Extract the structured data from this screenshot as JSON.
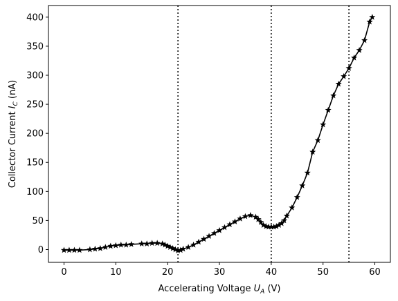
{
  "chart_data": {
    "type": "line",
    "xlabel": {
      "text": "Accelerating Voltage ",
      "var": "U",
      "sub": "A",
      "unit": " (V)"
    },
    "ylabel": {
      "text": "Collector Current ",
      "var": "I",
      "sub": "C",
      "unit": " (nA)"
    },
    "xlim": [
      -3,
      63
    ],
    "ylim": [
      -22,
      420
    ],
    "xticks": [
      0,
      10,
      20,
      30,
      40,
      50,
      60
    ],
    "yticks": [
      0,
      50,
      100,
      150,
      200,
      250,
      300,
      350,
      400
    ],
    "grid": false,
    "vlines": [
      22,
      40,
      55
    ],
    "series": [
      {
        "color": "#000000",
        "marker": "star",
        "x": [
          0,
          1,
          2,
          3,
          5,
          6,
          7,
          8,
          9,
          10,
          11,
          12,
          13,
          15,
          16,
          17,
          18,
          19,
          19.5,
          20,
          20.5,
          21,
          21.5,
          22,
          22.5,
          23,
          24,
          25,
          26,
          27,
          28,
          29,
          30,
          31,
          32,
          33,
          34,
          35,
          36,
          37,
          37.5,
          38,
          38.5,
          39,
          39.5,
          40,
          40.5,
          41,
          41.5,
          42,
          42.5,
          43,
          44,
          45,
          46,
          47,
          48,
          49,
          50,
          51,
          52,
          53,
          54,
          55,
          56,
          57,
          58,
          59,
          59.5
        ],
        "y": [
          -1,
          -1,
          -1,
          -1,
          0,
          1,
          2,
          4,
          6,
          7,
          8,
          8,
          9,
          10,
          10,
          11,
          11,
          10,
          8,
          6,
          4,
          2,
          0,
          -2,
          -1,
          1,
          4,
          8,
          13,
          18,
          23,
          28,
          33,
          38,
          43,
          48,
          53,
          57,
          59,
          56,
          52,
          47,
          42,
          40,
          39,
          39,
          39,
          40,
          42,
          45,
          50,
          58,
          72,
          90,
          110,
          132,
          168,
          188,
          215,
          240,
          265,
          285,
          298,
          312,
          330,
          343,
          360,
          392,
          400
        ]
      }
    ]
  }
}
